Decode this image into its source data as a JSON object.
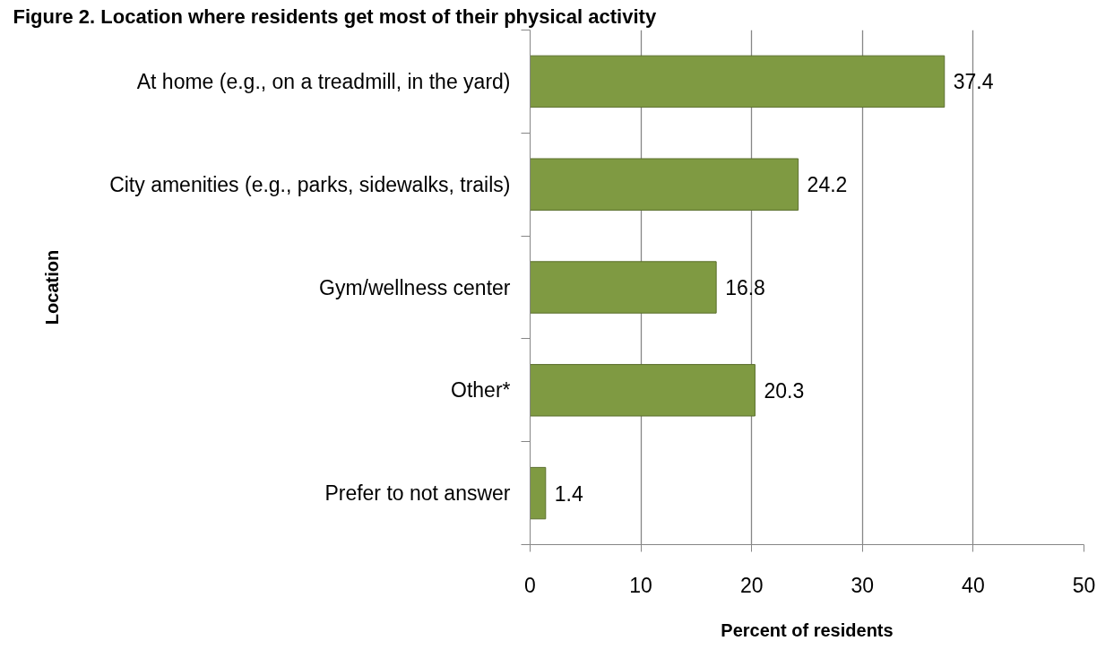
{
  "chart_data": {
    "type": "bar",
    "orientation": "horizontal",
    "title": "Figure 2. Location where residents get most of their physical activity",
    "xlabel": "Percent of residents",
    "ylabel": "Location",
    "categories": [
      "At home (e.g., on a treadmill, in the yard)",
      "City amenities (e.g., parks, sidewalks, trails)",
      "Gym/wellness center",
      "Other*",
      "Prefer to not answer"
    ],
    "values": [
      37.4,
      24.2,
      16.8,
      20.3,
      1.4
    ],
    "color": "#7f9a42",
    "xlim": [
      0,
      50
    ],
    "xticks": [
      0,
      10,
      20,
      30,
      40,
      50
    ],
    "grid": "x",
    "data_labels": true
  }
}
